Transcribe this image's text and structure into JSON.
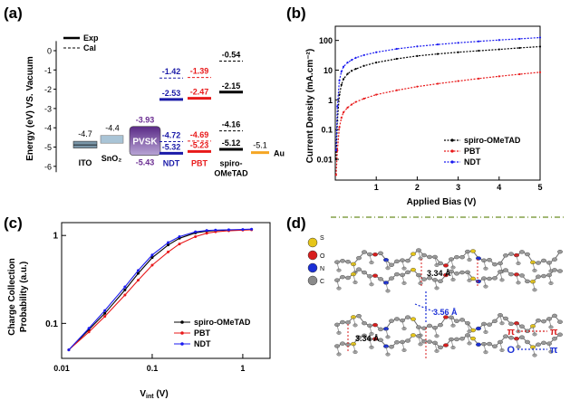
{
  "chart_data": [
    {
      "panel": "(a)",
      "type": "energy-level diagram",
      "ylabel": "Energy (eV) VS. Vacuum",
      "yticks": [
        "0",
        "-1",
        "-2",
        "-3",
        "-4",
        "-5",
        "-6"
      ],
      "ylim": [
        -6.3,
        0.5
      ],
      "legend": [
        {
          "label": "Exp",
          "style": "solid"
        },
        {
          "label": "Cal",
          "style": "dashed"
        }
      ],
      "materials": [
        {
          "name": "ITO",
          "color": "#7a96a8",
          "levels": [
            {
              "value": -4.7,
              "label": "-4.7",
              "kind": "exp",
              "lcolor": "#000000"
            }
          ]
        },
        {
          "name": "SnO₂",
          "color": "#a9c4d6",
          "levels": [
            {
              "value": -4.4,
              "label": "-4.4",
              "kind": "exp",
              "lcolor": "#000000"
            }
          ]
        },
        {
          "name": "PVSK",
          "color": "#7b3f9e",
          "levels": [
            {
              "value": -3.93,
              "label": "-3.93",
              "kind": "exp",
              "lcolor": "#6a2c91"
            },
            {
              "value": -5.43,
              "label": "-5.43",
              "kind": "exp",
              "lcolor": "#6a2c91"
            }
          ]
        },
        {
          "name": "NDT",
          "color": "#1a1aa8",
          "levels": [
            {
              "value": -1.42,
              "label": "-1.42",
              "kind": "cal"
            },
            {
              "value": -2.53,
              "label": "-2.53",
              "kind": "exp"
            },
            {
              "value": -4.72,
              "label": "-4.72",
              "kind": "cal"
            },
            {
              "value": -5.32,
              "label": "-5.32",
              "kind": "exp"
            }
          ]
        },
        {
          "name": "PBT",
          "color": "#e8191a",
          "levels": [
            {
              "value": -1.39,
              "label": "-1.39",
              "kind": "cal"
            },
            {
              "value": -2.47,
              "label": "-2.47",
              "kind": "exp"
            },
            {
              "value": -4.69,
              "label": "-4.69",
              "kind": "cal"
            },
            {
              "value": -5.23,
              "label": "-5.23",
              "kind": "exp"
            }
          ]
        },
        {
          "name": "spiro-OMeTAD",
          "name_lines": [
            "spiro-",
            "OMeTAD"
          ],
          "color": "#000000",
          "levels": [
            {
              "value": -0.54,
              "label": "-0.54",
              "kind": "cal"
            },
            {
              "value": -2.15,
              "label": "-2.15",
              "kind": "exp"
            },
            {
              "value": -4.16,
              "label": "-4.16",
              "kind": "cal"
            },
            {
              "value": -5.12,
              "label": "-5.12",
              "kind": "exp"
            }
          ]
        },
        {
          "name": "Au",
          "color": "#f5a623",
          "levels": [
            {
              "value": -5.1,
              "label": "-5.1",
              "kind": "exp",
              "lcolor": "#000000"
            }
          ]
        }
      ]
    },
    {
      "panel": "(b)",
      "type": "line",
      "xlabel": "Applied Bias (V)",
      "ylabel": "Current Density (mA.cm⁻²)",
      "xlim": [
        0,
        5
      ],
      "xticks": [
        "1",
        "2",
        "3",
        "4",
        "5"
      ],
      "ylog": true,
      "ylim": [
        0.002,
        300
      ],
      "yticks": [
        "0.01",
        "0.1",
        "1",
        "10",
        "100"
      ],
      "legend_position": "bottom-right",
      "series": [
        {
          "name": "spiro-OMeTAD",
          "color": "#000000",
          "x": [
            0.02,
            0.05,
            0.1,
            0.15,
            0.2,
            0.3,
            0.4,
            0.5,
            0.7,
            1.0,
            1.5,
            2.0,
            2.5,
            3.0,
            3.5,
            4.0,
            4.5,
            5.0
          ],
          "y": [
            0.01,
            0.2,
            1.5,
            3.2,
            5,
            7.5,
            9.5,
            11,
            14,
            18,
            24,
            30,
            35,
            40,
            45,
            50,
            56,
            62
          ]
        },
        {
          "name": "PBT",
          "color": "#e8191a",
          "x": [
            0.02,
            0.05,
            0.1,
            0.15,
            0.2,
            0.3,
            0.4,
            0.5,
            0.7,
            1.0,
            1.5,
            2.0,
            2.5,
            3.0,
            3.5,
            4.0,
            4.5,
            5.0
          ],
          "y": [
            0.003,
            0.02,
            0.12,
            0.25,
            0.38,
            0.55,
            0.7,
            0.85,
            1.1,
            1.5,
            2.1,
            2.8,
            3.5,
            4.3,
            5.2,
            6.2,
            7.3,
            8.5
          ]
        },
        {
          "name": "NDT",
          "color": "#1a1af0",
          "x": [
            0.02,
            0.05,
            0.1,
            0.15,
            0.2,
            0.3,
            0.4,
            0.5,
            0.7,
            1.0,
            1.5,
            2.0,
            2.5,
            3.0,
            3.5,
            4.0,
            4.5,
            5.0
          ],
          "y": [
            0.02,
            0.6,
            4.5,
            9,
            13,
            18,
            22,
            26,
            32,
            40,
            52,
            63,
            73,
            83,
            93,
            103,
            113,
            125
          ]
        }
      ]
    },
    {
      "panel": "(c)",
      "type": "line",
      "xlabel": "V",
      "xlabel_sub": "int",
      "xlabel_unit": " (V)",
      "ylabel_lines": [
        "Charge Collection",
        "Probability (a.u.)"
      ],
      "xlog": true,
      "xlim": [
        0.01,
        2
      ],
      "xticks": [
        "0.01",
        "0.1",
        "1"
      ],
      "ylog": true,
      "ylim": [
        0.04,
        1.4
      ],
      "yticks": [
        "0.1",
        "1"
      ],
      "legend_position": "bottom-right",
      "series": [
        {
          "name": "spiro-OMeTAD",
          "color": "#000000",
          "x": [
            0.012,
            0.02,
            0.03,
            0.05,
            0.07,
            0.1,
            0.15,
            0.2,
            0.3,
            0.4,
            0.5,
            0.7,
            1.0,
            1.25
          ],
          "y": [
            0.05,
            0.085,
            0.13,
            0.24,
            0.37,
            0.56,
            0.78,
            0.93,
            1.07,
            1.12,
            1.14,
            1.15,
            1.16,
            1.17
          ]
        },
        {
          "name": "PBT",
          "color": "#e8191a",
          "x": [
            0.012,
            0.02,
            0.03,
            0.05,
            0.07,
            0.1,
            0.15,
            0.2,
            0.3,
            0.4,
            0.5,
            0.7,
            1.0,
            1.25
          ],
          "y": [
            0.05,
            0.08,
            0.12,
            0.21,
            0.31,
            0.46,
            0.65,
            0.8,
            0.97,
            1.06,
            1.1,
            1.13,
            1.15,
            1.16
          ]
        },
        {
          "name": "NDT",
          "color": "#1a1af0",
          "x": [
            0.012,
            0.02,
            0.03,
            0.05,
            0.07,
            0.1,
            0.15,
            0.2,
            0.3,
            0.4,
            0.5,
            0.7,
            1.0,
            1.25
          ],
          "y": [
            0.05,
            0.088,
            0.14,
            0.26,
            0.4,
            0.6,
            0.83,
            0.97,
            1.1,
            1.14,
            1.15,
            1.16,
            1.17,
            1.18
          ]
        }
      ]
    },
    {
      "panel": "(d)",
      "type": "crystal-packing diagram",
      "atoms": [
        {
          "symbol": "S",
          "color": "#e6c619"
        },
        {
          "symbol": "O",
          "color": "#d81e1e"
        },
        {
          "symbol": "N",
          "color": "#1a2fd6"
        },
        {
          "symbol": "C",
          "color": "#8a8a8a"
        }
      ],
      "distances": [
        {
          "label": "3.34 Å",
          "kind": "pi-pi"
        },
        {
          "label": "3.56 Å",
          "kind": "O-pi"
        },
        {
          "label": "3.34 Å",
          "kind": "pi-pi"
        }
      ],
      "interaction_legend": [
        {
          "left": "π",
          "right": "π",
          "color": "#d81e1e"
        },
        {
          "left": "O",
          "right": "π",
          "color": "#1a2fd6"
        }
      ]
    }
  ]
}
